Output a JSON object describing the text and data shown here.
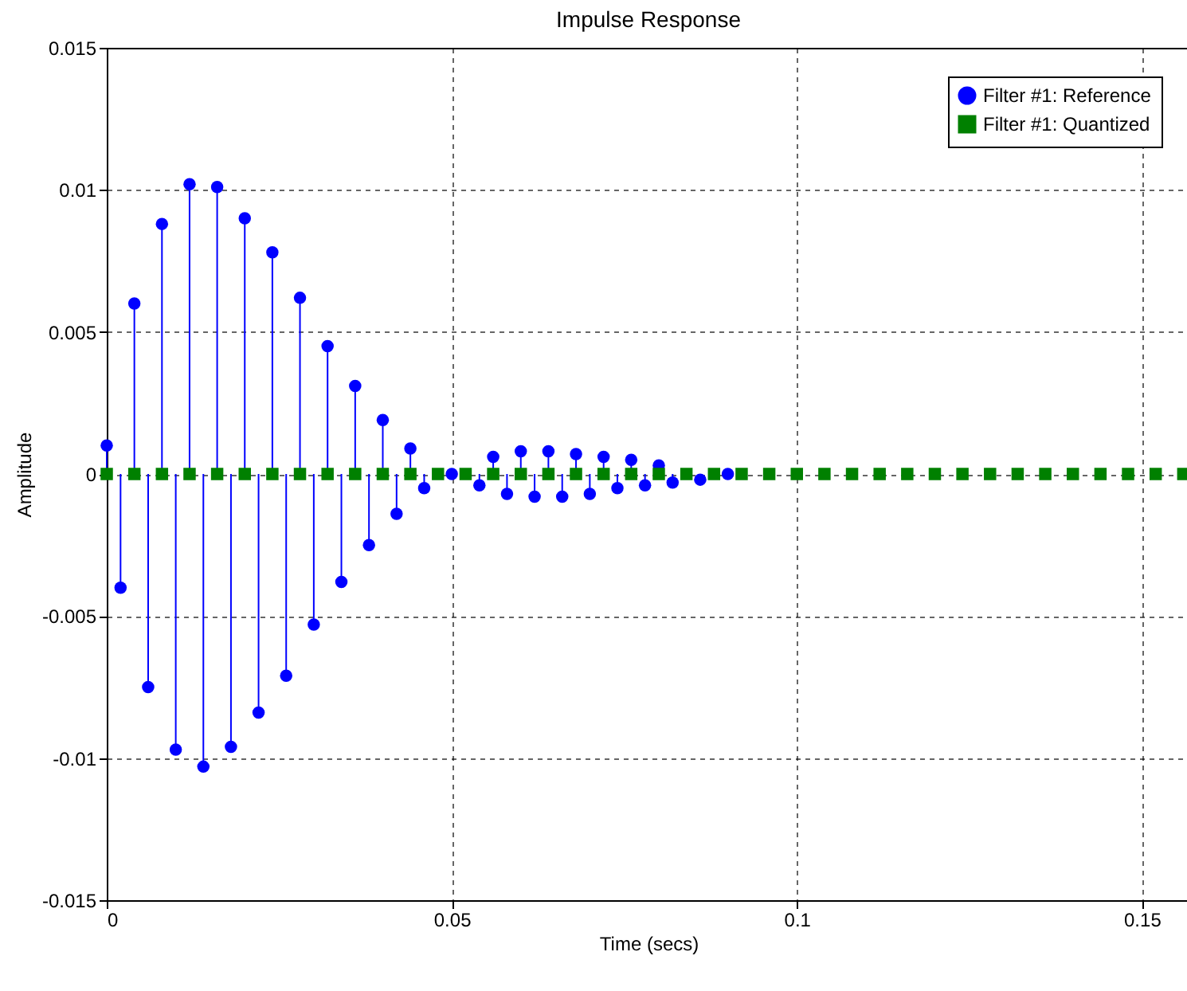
{
  "chart_data": {
    "type": "lollipop",
    "title": "Impulse Response",
    "xlabel": "Time (secs)",
    "ylabel": "Amplitude",
    "xlim": [
      0,
      0.157
    ],
    "xticks": [
      0,
      0.05,
      0.1,
      0.15
    ],
    "ylim": [
      -0.015,
      0.015
    ],
    "yticks": [
      -0.015,
      -0.01,
      -0.005,
      0,
      0.005,
      0.01,
      0.015
    ],
    "grid": true,
    "legend": "top right",
    "series": [
      {
        "name": "Filter #1: Reference",
        "color": "#0000ff",
        "marker": "circle",
        "x": [
          0,
          0.002,
          0.004,
          0.006,
          0.008,
          0.01,
          0.012,
          0.014,
          0.016,
          0.018,
          0.02,
          0.022,
          0.024,
          0.026,
          0.028,
          0.03,
          0.032,
          0.034,
          0.036,
          0.038,
          0.04,
          0.042,
          0.044,
          0.046,
          0.05,
          0.054,
          0.056,
          0.058,
          0.06,
          0.062,
          0.064,
          0.066,
          0.068,
          0.07,
          0.072,
          0.074,
          0.076,
          0.078,
          0.08,
          0.082,
          0.086,
          0.09
        ],
        "values": [
          0.001,
          -0.004,
          0.006,
          -0.0075,
          0.0088,
          -0.0097,
          0.0102,
          -0.0103,
          0.0101,
          -0.0096,
          0.009,
          -0.0084,
          0.0078,
          -0.0071,
          0.0062,
          -0.0053,
          0.0045,
          -0.0038,
          0.0031,
          -0.0025,
          0.0019,
          -0.0014,
          0.0009,
          -0.0005,
          0,
          -0.0004,
          0.0006,
          -0.0007,
          0.0008,
          -0.0008,
          0.0008,
          -0.0008,
          0.0007,
          -0.0007,
          0.0006,
          -0.0005,
          0.0005,
          -0.0004,
          0.0003,
          -0.0003,
          -0.0002,
          0
        ]
      },
      {
        "name": "Filter #1: Quantized",
        "color": "#008000",
        "marker": "square",
        "x": [
          0,
          0.004,
          0.008,
          0.012,
          0.016,
          0.02,
          0.024,
          0.028,
          0.032,
          0.036,
          0.04,
          0.044,
          0.048,
          0.052,
          0.056,
          0.06,
          0.064,
          0.068,
          0.072,
          0.076,
          0.08,
          0.084,
          0.088,
          0.092,
          0.096,
          0.1,
          0.104,
          0.108,
          0.112,
          0.116,
          0.12,
          0.124,
          0.128,
          0.132,
          0.136,
          0.14,
          0.144,
          0.148,
          0.152,
          0.156
        ],
        "values": [
          0,
          0,
          0,
          0,
          0,
          0,
          0,
          0,
          0,
          0,
          0,
          0,
          0,
          0,
          0,
          0,
          0,
          0,
          0,
          0,
          0,
          0,
          0,
          0,
          0,
          0,
          0,
          0,
          0,
          0,
          0,
          0,
          0,
          0,
          0,
          0,
          0,
          0,
          0,
          0
        ]
      }
    ]
  }
}
